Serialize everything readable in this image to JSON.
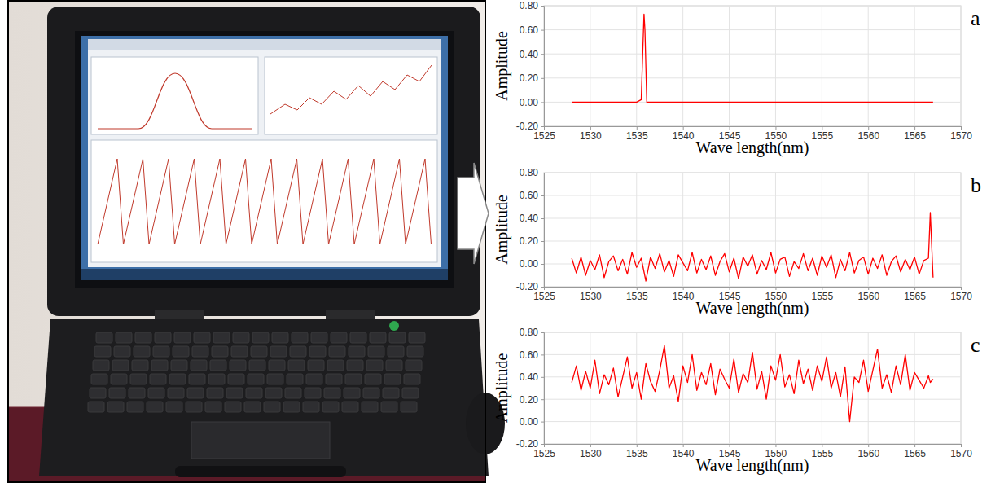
{
  "chart_data": [
    {
      "type": "line",
      "title": "a",
      "x_label": "Wave length(nm)",
      "y_label": "Amplitude",
      "xlim": [
        1525,
        1570
      ],
      "xticks": [
        1525,
        1530,
        1535,
        1540,
        1545,
        1550,
        1555,
        1560,
        1565,
        1570
      ],
      "ylim": [
        -0.2,
        0.8
      ],
      "yticks": [
        {
          "value": -0.2,
          "label": "-0.20"
        },
        {
          "value": 0,
          "label": "0.00"
        },
        {
          "value": 0.2,
          "label": "0.20"
        },
        {
          "value": 0.4,
          "label": "0.40"
        },
        {
          "value": 0.6,
          "label": "0.60"
        },
        {
          "value": 0.8,
          "label": "0.80"
        }
      ],
      "grid": true,
      "x": [
        1528,
        1535,
        1535.5,
        1535.7,
        1535.8,
        1535.9,
        1536.1,
        1537,
        1567
      ],
      "series": [
        {
          "color": "#ff0000",
          "values": [
            0,
            0,
            0.02,
            0.5,
            0.73,
            0.6,
            0,
            0,
            0
          ]
        }
      ]
    },
    {
      "type": "line",
      "title": "b",
      "x_label": "Wave length(nm)",
      "y_label": "Amplitude",
      "xlim": [
        1525,
        1570
      ],
      "xticks": [
        1525,
        1530,
        1535,
        1540,
        1545,
        1550,
        1555,
        1560,
        1565,
        1570
      ],
      "ylim": [
        -0.2,
        0.8
      ],
      "yticks": [
        {
          "value": -0.2,
          "label": "-0.20"
        },
        {
          "value": 0,
          "label": "0.00"
        },
        {
          "value": 0.2,
          "label": "0.20"
        },
        {
          "value": 0.4,
          "label": "0.40"
        },
        {
          "value": 0.6,
          "label": "0.60"
        },
        {
          "value": 0.8,
          "label": "0.80"
        }
      ],
      "grid": true,
      "x": [
        1528,
        1528.5,
        1529,
        1529.5,
        1530,
        1530.5,
        1531,
        1531.5,
        1532,
        1532.5,
        1533,
        1533.5,
        1534,
        1534.5,
        1535,
        1535.5,
        1536,
        1536.5,
        1537,
        1537.5,
        1538,
        1538.5,
        1539,
        1539.5,
        1540,
        1540.5,
        1541,
        1541.5,
        1542,
        1542.5,
        1543,
        1543.5,
        1544,
        1544.5,
        1545,
        1545.5,
        1546,
        1546.5,
        1547,
        1547.5,
        1548,
        1548.5,
        1549,
        1549.5,
        1550,
        1550.5,
        1551,
        1551.5,
        1552,
        1552.5,
        1553,
        1553.5,
        1554,
        1554.5,
        1555,
        1555.5,
        1556,
        1556.5,
        1557,
        1557.5,
        1558,
        1558.5,
        1559,
        1559.5,
        1560,
        1560.5,
        1561,
        1561.5,
        1562,
        1562.5,
        1563,
        1563.5,
        1564,
        1564.5,
        1565,
        1565.5,
        1566,
        1566.5,
        1566.7,
        1567
      ],
      "series": [
        {
          "color": "#ff0000",
          "values": [
            0.05,
            -0.08,
            0.06,
            -0.1,
            0.03,
            -0.05,
            0.08,
            -0.12,
            0.02,
            0.07,
            -0.06,
            0.04,
            -0.09,
            0.1,
            -0.03,
            0.05,
            -0.15,
            0.06,
            -0.04,
            0.09,
            -0.07,
            0.03,
            -0.11,
            0.08,
            0.01,
            -0.06,
            0.1,
            -0.08,
            0.04,
            -0.05,
            0.07,
            -0.1,
            0.02,
            0.09,
            -0.07,
            0.05,
            -0.13,
            0.06,
            -0.02,
            0.08,
            -0.09,
            0.03,
            -0.05,
            0.1,
            -0.08,
            0.04,
            0.06,
            -0.11,
            0.02,
            -0.04,
            0.09,
            -0.06,
            0.05,
            -0.1,
            0.07,
            -0.03,
            0.08,
            -0.12,
            0.04,
            -0.06,
            0.1,
            -0.08,
            0.03,
            0.06,
            -0.09,
            0.05,
            -0.04,
            0.08,
            -0.1,
            0.02,
            0.07,
            -0.07,
            0.04,
            -0.05,
            0.06,
            -0.09,
            0.03,
            0.05,
            0.45,
            -0.12
          ]
        }
      ]
    },
    {
      "type": "line",
      "title": "c",
      "x_label": "Wave length(nm)",
      "y_label": "Amplitude",
      "xlim": [
        1525,
        1570
      ],
      "xticks": [
        1525,
        1530,
        1535,
        1540,
        1545,
        1550,
        1555,
        1560,
        1565,
        1570
      ],
      "ylim": [
        -0.2,
        0.8
      ],
      "yticks": [
        {
          "value": -0.2,
          "label": "-0.20"
        },
        {
          "value": 0,
          "label": "0.00"
        },
        {
          "value": 0.2,
          "label": "0.20"
        },
        {
          "value": 0.4,
          "label": "0.40"
        },
        {
          "value": 0.6,
          "label": "0.60"
        },
        {
          "value": 0.8,
          "label": "0.80"
        }
      ],
      "grid": true,
      "x": [
        1528,
        1528.5,
        1529,
        1529.5,
        1530,
        1530.5,
        1531,
        1531.5,
        1532,
        1532.5,
        1533,
        1533.5,
        1534,
        1534.5,
        1535,
        1535.5,
        1536,
        1536.5,
        1537,
        1537.5,
        1538,
        1538.5,
        1539,
        1539.5,
        1540,
        1540.5,
        1541,
        1541.5,
        1542,
        1542.5,
        1543,
        1543.5,
        1544,
        1544.5,
        1545,
        1545.5,
        1546,
        1546.5,
        1547,
        1547.5,
        1548,
        1548.5,
        1549,
        1549.5,
        1550,
        1550.5,
        1551,
        1551.5,
        1552,
        1552.5,
        1553,
        1553.5,
        1554,
        1554.5,
        1555,
        1555.5,
        1556,
        1556.5,
        1557,
        1557.5,
        1558,
        1558.5,
        1559,
        1559.5,
        1560,
        1560.5,
        1561,
        1561.5,
        1562,
        1562.5,
        1563,
        1563.5,
        1564,
        1564.5,
        1565,
        1565.5,
        1566,
        1566.5,
        1566.7,
        1567
      ],
      "series": [
        {
          "color": "#ff0000",
          "values": [
            0.35,
            0.5,
            0.28,
            0.45,
            0.3,
            0.55,
            0.25,
            0.42,
            0.33,
            0.48,
            0.22,
            0.4,
            0.58,
            0.3,
            0.44,
            0.2,
            0.52,
            0.36,
            0.27,
            0.46,
            0.68,
            0.3,
            0.41,
            0.18,
            0.5,
            0.35,
            0.6,
            0.28,
            0.44,
            0.33,
            0.52,
            0.24,
            0.47,
            0.38,
            0.3,
            0.56,
            0.26,
            0.43,
            0.35,
            0.62,
            0.29,
            0.45,
            0.2,
            0.5,
            0.37,
            0.6,
            0.31,
            0.42,
            0.25,
            0.55,
            0.34,
            0.47,
            0.28,
            0.5,
            0.36,
            0.58,
            0.3,
            0.44,
            0.22,
            0.49,
            0.0,
            0.4,
            0.35,
            0.55,
            0.27,
            0.46,
            0.65,
            0.3,
            0.42,
            0.26,
            0.5,
            0.33,
            0.6,
            0.28,
            0.44,
            0.37,
            0.3,
            0.41,
            0.35,
            0.38
          ]
        }
      ]
    }
  ]
}
